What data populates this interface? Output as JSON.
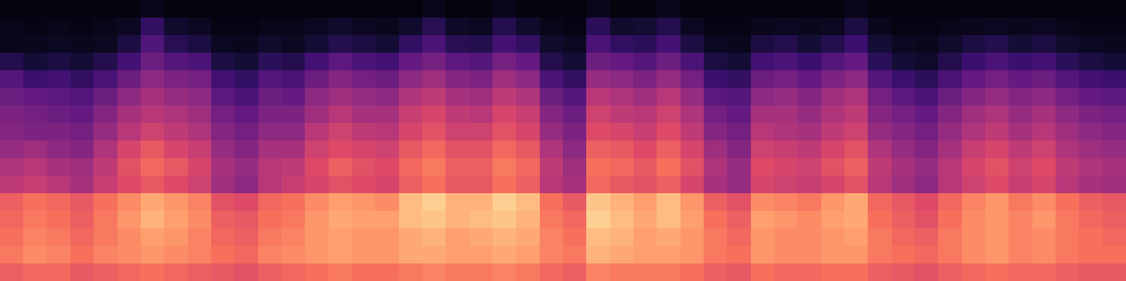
{
  "chart_data": {
    "type": "heatmap",
    "tick_labels": false,
    "zlim": [
      0,
      100
    ],
    "cells": [
      [
        2,
        2,
        2,
        2,
        2,
        2,
        4,
        2,
        2,
        2,
        2,
        2,
        2,
        2,
        2,
        2,
        2,
        2,
        4,
        2,
        2,
        4,
        2,
        2,
        2,
        4,
        2,
        2,
        4,
        2,
        2,
        2,
        2,
        2,
        2,
        2,
        4,
        2,
        2,
        2,
        2,
        2,
        2,
        2,
        2,
        2,
        2,
        2
      ],
      [
        4,
        3,
        4,
        3,
        4,
        6,
        18,
        8,
        6,
        3,
        3,
        4,
        4,
        6,
        8,
        6,
        5,
        8,
        15,
        7,
        6,
        14,
        8,
        4,
        3,
        16,
        8,
        9,
        14,
        6,
        3,
        3,
        5,
        6,
        5,
        6,
        12,
        5,
        3,
        3,
        4,
        5,
        6,
        5,
        6,
        4,
        3,
        3
      ],
      [
        4,
        5,
        6,
        5,
        6,
        12,
        25,
        15,
        12,
        6,
        5,
        8,
        6,
        10,
        14,
        12,
        10,
        18,
        24,
        15,
        14,
        22,
        18,
        8,
        6,
        24,
        18,
        16,
        22,
        12,
        6,
        5,
        12,
        14,
        10,
        14,
        20,
        10,
        6,
        5,
        8,
        12,
        14,
        10,
        12,
        8,
        6,
        5
      ],
      [
        14,
        10,
        12,
        10,
        14,
        22,
        32,
        26,
        24,
        12,
        10,
        16,
        14,
        22,
        28,
        24,
        22,
        30,
        34,
        28,
        26,
        34,
        30,
        14,
        10,
        32,
        30,
        26,
        32,
        24,
        12,
        10,
        22,
        24,
        20,
        26,
        30,
        16,
        10,
        8,
        14,
        20,
        24,
        20,
        22,
        16,
        12,
        10
      ],
      [
        26,
        20,
        22,
        18,
        24,
        32,
        40,
        36,
        34,
        22,
        18,
        26,
        24,
        32,
        38,
        34,
        32,
        40,
        44,
        38,
        36,
        44,
        40,
        24,
        18,
        42,
        40,
        36,
        42,
        34,
        20,
        18,
        32,
        34,
        30,
        36,
        40,
        26,
        20,
        16,
        24,
        30,
        34,
        30,
        32,
        26,
        22,
        20
      ],
      [
        32,
        30,
        28,
        26,
        32,
        40,
        46,
        42,
        40,
        28,
        24,
        32,
        30,
        40,
        44,
        42,
        40,
        48,
        52,
        46,
        44,
        52,
        48,
        32,
        26,
        50,
        48,
        44,
        50,
        42,
        28,
        26,
        40,
        42,
        38,
        44,
        48,
        34,
        28,
        24,
        32,
        38,
        42,
        38,
        40,
        34,
        30,
        28
      ],
      [
        36,
        34,
        32,
        30,
        38,
        46,
        50,
        48,
        44,
        34,
        30,
        36,
        36,
        44,
        50,
        46,
        46,
        54,
        58,
        52,
        50,
        58,
        54,
        38,
        32,
        56,
        52,
        50,
        56,
        48,
        34,
        30,
        46,
        46,
        42,
        48,
        52,
        38,
        34,
        30,
        38,
        44,
        48,
        42,
        46,
        40,
        36,
        34
      ],
      [
        38,
        36,
        36,
        34,
        42,
        50,
        56,
        52,
        48,
        38,
        34,
        40,
        40,
        50,
        56,
        52,
        50,
        58,
        62,
        56,
        56,
        62,
        58,
        42,
        36,
        60,
        58,
        54,
        60,
        52,
        38,
        34,
        50,
        48,
        46,
        52,
        56,
        42,
        38,
        34,
        42,
        48,
        52,
        46,
        50,
        44,
        40,
        38
      ],
      [
        42,
        44,
        40,
        38,
        48,
        58,
        64,
        58,
        54,
        42,
        38,
        46,
        46,
        56,
        60,
        58,
        56,
        64,
        68,
        62,
        62,
        68,
        64,
        48,
        40,
        66,
        64,
        60,
        66,
        58,
        44,
        38,
        56,
        54,
        52,
        58,
        62,
        48,
        42,
        38,
        46,
        54,
        58,
        52,
        56,
        48,
        44,
        42
      ],
      [
        48,
        50,
        46,
        44,
        52,
        62,
        68,
        64,
        58,
        46,
        42,
        50,
        52,
        60,
        66,
        62,
        60,
        68,
        72,
        66,
        66,
        72,
        68,
        52,
        44,
        70,
        68,
        64,
        70,
        62,
        48,
        42,
        60,
        58,
        56,
        62,
        66,
        52,
        46,
        42,
        50,
        58,
        62,
        56,
        60,
        52,
        48,
        46
      ],
      [
        52,
        54,
        50,
        46,
        54,
        60,
        64,
        60,
        56,
        44,
        40,
        50,
        54,
        58,
        62,
        60,
        58,
        66,
        70,
        64,
        64,
        70,
        66,
        50,
        46,
        68,
        64,
        62,
        66,
        58,
        46,
        42,
        58,
        56,
        54,
        58,
        62,
        50,
        44,
        40,
        50,
        56,
        60,
        54,
        58,
        50,
        46,
        44
      ],
      [
        66,
        70,
        68,
        64,
        70,
        76,
        82,
        78,
        74,
        62,
        60,
        68,
        70,
        76,
        80,
        78,
        76,
        86,
        90,
        84,
        84,
        90,
        86,
        70,
        64,
        88,
        84,
        80,
        86,
        78,
        66,
        62,
        76,
        74,
        72,
        78,
        82,
        68,
        64,
        60,
        68,
        74,
        78,
        72,
        76,
        70,
        66,
        64
      ],
      [
        68,
        72,
        70,
        66,
        72,
        78,
        84,
        80,
        76,
        66,
        64,
        70,
        72,
        78,
        82,
        80,
        80,
        86,
        88,
        84,
        86,
        88,
        84,
        72,
        68,
        90,
        86,
        82,
        86,
        80,
        70,
        66,
        80,
        78,
        76,
        80,
        82,
        70,
        66,
        62,
        70,
        76,
        78,
        74,
        78,
        72,
        68,
        66
      ],
      [
        70,
        74,
        72,
        68,
        72,
        76,
        80,
        78,
        74,
        68,
        66,
        72,
        74,
        78,
        80,
        78,
        78,
        82,
        84,
        80,
        82,
        84,
        82,
        74,
        70,
        86,
        84,
        80,
        82,
        78,
        72,
        68,
        78,
        76,
        76,
        78,
        80,
        72,
        68,
        66,
        72,
        76,
        78,
        74,
        76,
        72,
        70,
        68
      ],
      [
        72,
        76,
        74,
        70,
        74,
        76,
        78,
        76,
        74,
        70,
        68,
        74,
        76,
        78,
        80,
        78,
        78,
        82,
        82,
        80,
        80,
        82,
        80,
        74,
        72,
        84,
        82,
        80,
        80,
        78,
        72,
        70,
        78,
        76,
        76,
        78,
        78,
        72,
        70,
        68,
        72,
        76,
        78,
        74,
        76,
        72,
        70,
        70
      ],
      [
        66,
        68,
        68,
        64,
        66,
        68,
        70,
        68,
        66,
        64,
        62,
        66,
        68,
        70,
        72,
        70,
        70,
        72,
        74,
        72,
        72,
        74,
        72,
        68,
        66,
        74,
        72,
        72,
        72,
        70,
        66,
        64,
        70,
        68,
        68,
        70,
        70,
        66,
        64,
        62,
        66,
        68,
        70,
        68,
        68,
        66,
        64,
        64
      ]
    ]
  }
}
